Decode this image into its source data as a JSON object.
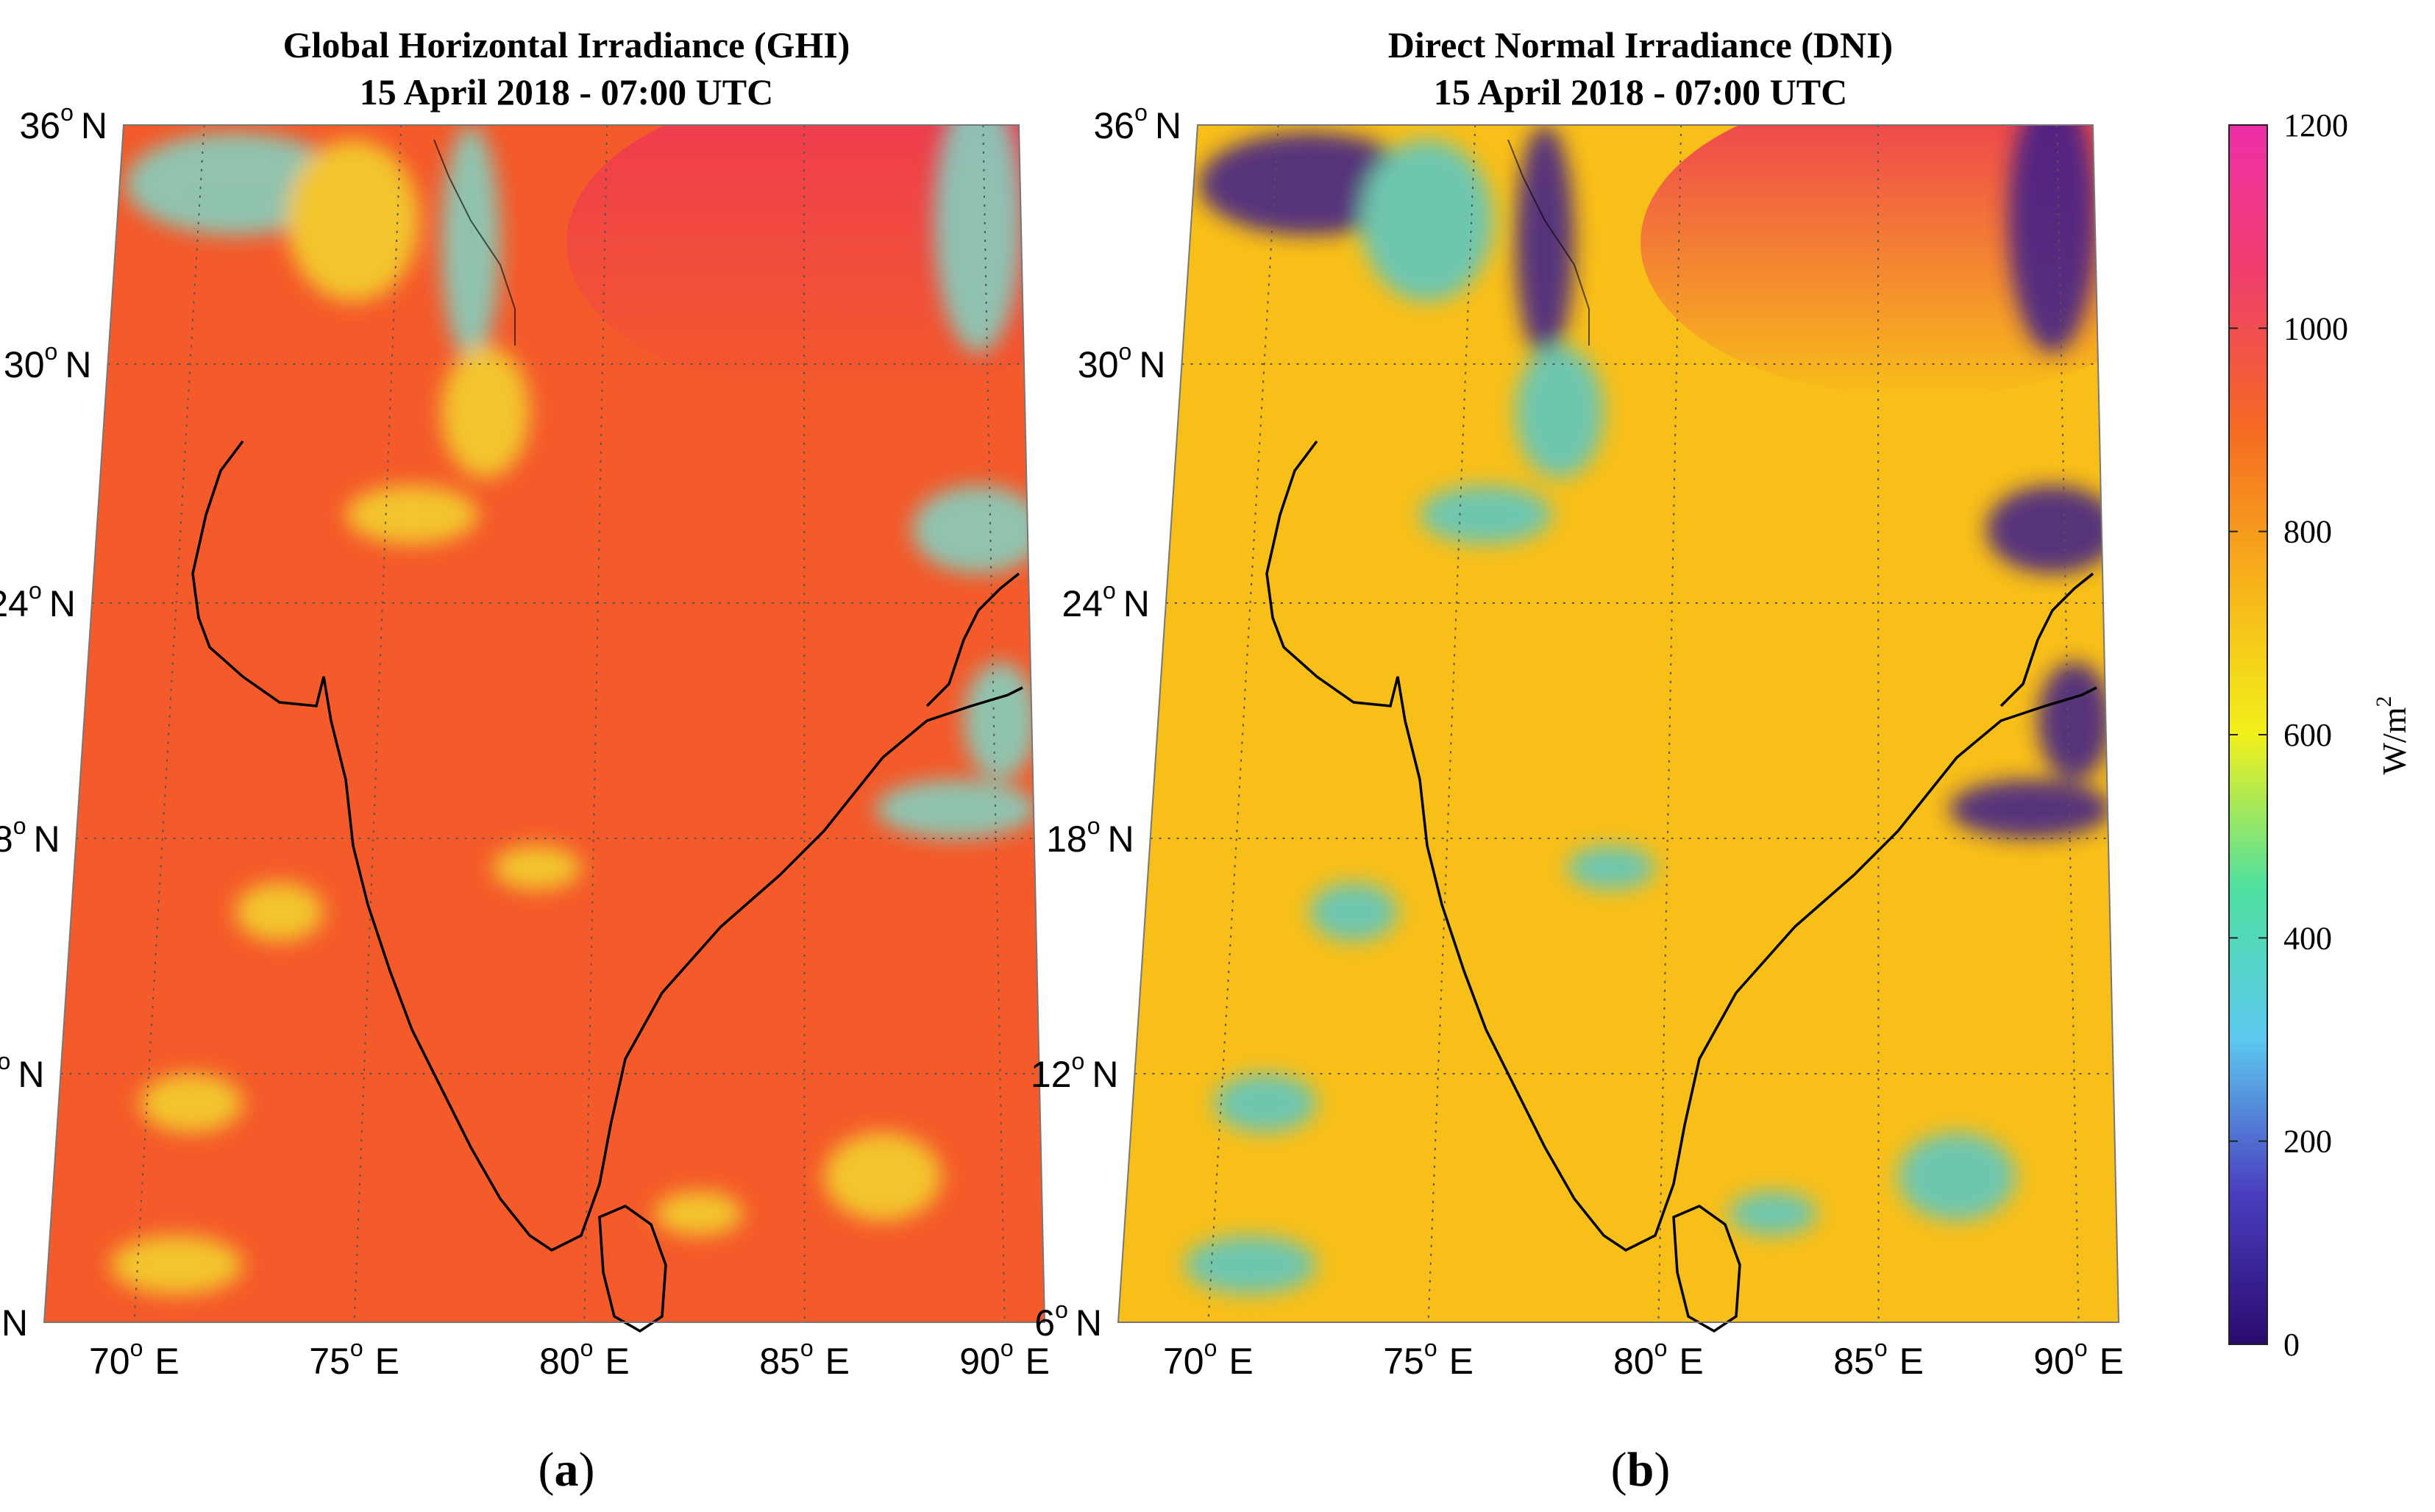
{
  "panels": [
    {
      "id": "a",
      "title_line1": "Global Horizontal Irradiance (GHI)",
      "title_line2": "15 April 2018 - 07:00 UTC",
      "caption": "a",
      "base_color": "#f45a2a",
      "north_color": "#ee3a52",
      "cloud_color": "#f3d82e",
      "cloud2_color": "#7fd6c6"
    },
    {
      "id": "b",
      "title_line1": "Direct Normal Irradiance (DNI)",
      "title_line2": "15 April 2018 - 07:00 UTC",
      "caption": "b",
      "base_color": "#f8bf18",
      "north_color": "#ee3a52",
      "cloud_color": "#57c7c9",
      "cloud2_color": "#3a1a8c"
    }
  ],
  "lat_labels": [
    "36",
    "30",
    "24",
    "18",
    "12",
    "6"
  ],
  "lat_suffix": "N",
  "lon_labels": [
    "70",
    "75",
    "80",
    "85",
    "90"
  ],
  "lon_suffix": "E",
  "degree_symbol": "o",
  "colorbar": {
    "min": 0,
    "max": 1200,
    "ticks": [
      "0",
      "200",
      "400",
      "600",
      "800",
      "1000",
      "1200"
    ],
    "unit_label": "W/m",
    "unit_superscript": "2",
    "colors": [
      "#2a0a6e",
      "#4a3fc0",
      "#5cc8ef",
      "#4fe0a0",
      "#f2f01a",
      "#f7b21a",
      "#f56a22",
      "#ef3f6a",
      "#ee2fa8"
    ]
  },
  "colors": {
    "coastline": "#000000",
    "grid": "#555555",
    "map_border": "#777777"
  }
}
